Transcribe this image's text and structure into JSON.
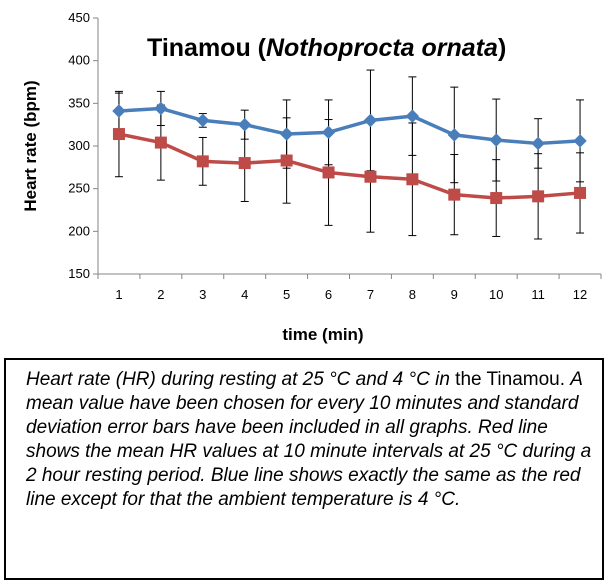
{
  "chart_data": {
    "type": "line",
    "title_main": "Tinamou (",
    "title_italic": "Nothoprocta ornata",
    "title_end": ")",
    "xlabel": "time (min)",
    "ylabel": "Heart rate (bpm)",
    "ylim": [
      150,
      450
    ],
    "yticks": [
      150,
      200,
      250,
      300,
      350,
      400,
      450
    ],
    "categories": [
      "1",
      "2",
      "3",
      "4",
      "5",
      "6",
      "7",
      "8",
      "9",
      "10",
      "11",
      "12"
    ],
    "grid": false,
    "series": [
      {
        "color": "#4a7ebb",
        "marker": "diamond",
        "values": [
          341,
          344,
          330,
          325,
          314,
          316,
          330,
          335,
          313,
          307,
          303,
          306
        ],
        "error": [
          21,
          20,
          8,
          17,
          40,
          38,
          59,
          46,
          56,
          48,
          29,
          48
        ]
      },
      {
        "color": "#be4b48",
        "marker": "square",
        "values": [
          314,
          304,
          282,
          280,
          283,
          269,
          264,
          261,
          243,
          239,
          241,
          245
        ],
        "error": [
          50,
          44,
          28,
          45,
          50,
          62,
          65,
          66,
          47,
          45,
          50,
          47
        ]
      }
    ]
  },
  "caption": {
    "part1": "Heart rate (HR) during resting at 25 °C and 4 °C ",
    "part2": "in ",
    "part3": "the Tinamou. ",
    "part4": "A mean value have been chosen for every 10 minutes and standard deviation error bars have been included in all graphs.  Red line shows the mean HR values at 10 minute intervals at 25 °C during a 2 hour resting period. Blue line shows exactly the same as the red line except for that the ambient temperature is 4 °C."
  }
}
